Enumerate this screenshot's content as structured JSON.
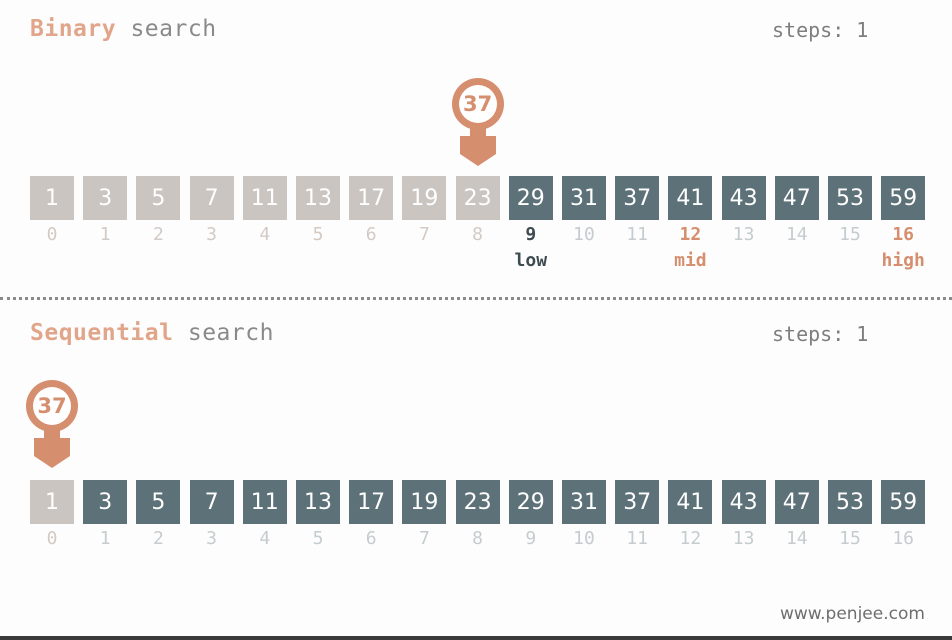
{
  "binary": {
    "title_accent": "Binary",
    "title_rest": "search",
    "steps_label": "steps:",
    "steps_value": "1",
    "target": "37",
    "values": [
      "1",
      "3",
      "5",
      "7",
      "11",
      "13",
      "17",
      "19",
      "23",
      "29",
      "31",
      "37",
      "41",
      "43",
      "47",
      "53",
      "59"
    ],
    "indices": [
      "0",
      "1",
      "2",
      "3",
      "4",
      "5",
      "6",
      "7",
      "8",
      "9",
      "10",
      "11",
      "12",
      "13",
      "14",
      "15",
      "16"
    ],
    "active_from": 9,
    "active_to": 16,
    "marker_at": 8,
    "pointers": {
      "low": "low",
      "mid": "mid",
      "high": "high"
    },
    "pointer_indices": {
      "low": 9,
      "mid": 12,
      "high": 16
    }
  },
  "sequential": {
    "title_accent": "Sequential",
    "title_rest": "search",
    "steps_label": "steps:",
    "steps_value": "1",
    "target": "37",
    "values": [
      "1",
      "3",
      "5",
      "7",
      "11",
      "13",
      "17",
      "19",
      "23",
      "29",
      "31",
      "37",
      "41",
      "43",
      "47",
      "53",
      "59"
    ],
    "indices": [
      "0",
      "1",
      "2",
      "3",
      "4",
      "5",
      "6",
      "7",
      "8",
      "9",
      "10",
      "11",
      "12",
      "13",
      "14",
      "15",
      "16"
    ],
    "active_from": 1,
    "active_to": 16,
    "marker_at": 0
  },
  "colors": {
    "accent": "#d58e6e",
    "active_cell": "#5d7178",
    "inactive_cell": "#cbc5c2"
  },
  "watermark": "www.penjee.com"
}
